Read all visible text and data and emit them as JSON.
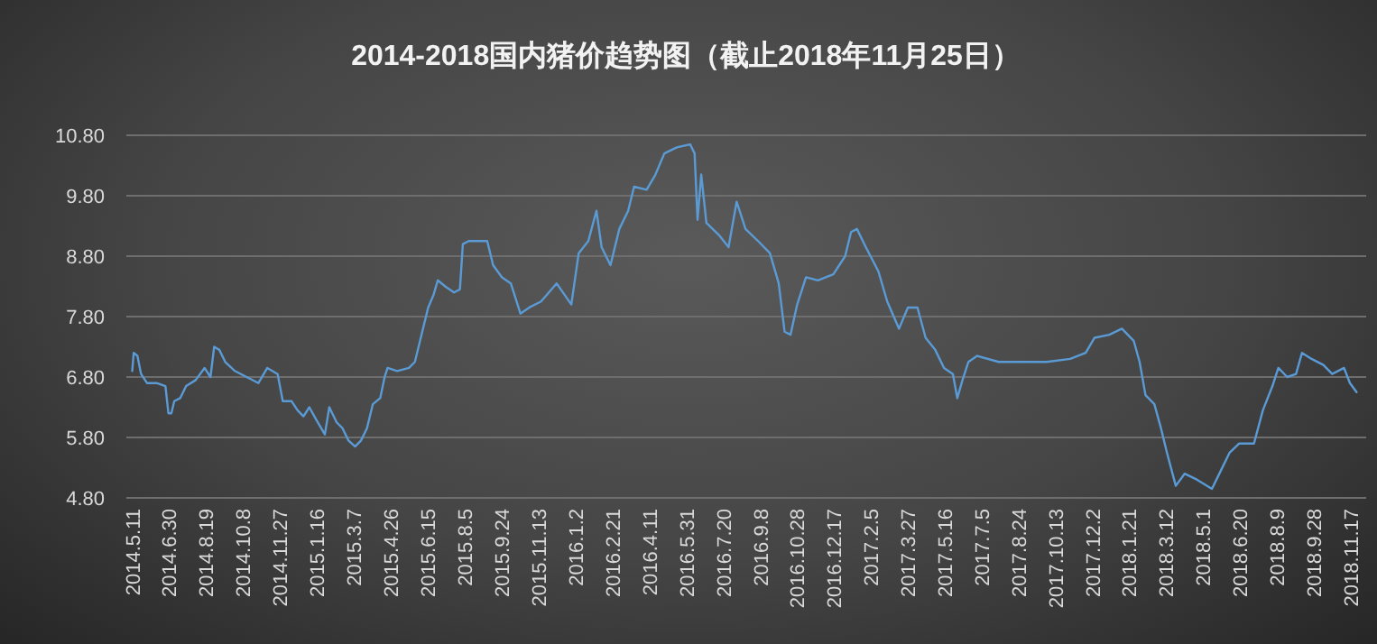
{
  "chart_data": {
    "type": "line",
    "title": "2014-2018国内猪价趋势图（截止2018年11月25日）",
    "x": [
      "2014-05-11",
      "2014-05-13",
      "2014-05-18",
      "2014-05-23",
      "2014-05-31",
      "2014-06-13",
      "2014-06-25",
      "2014-06-29",
      "2014-07-03",
      "2014-07-07",
      "2014-07-15",
      "2014-07-23",
      "2014-08-05",
      "2014-08-17",
      "2014-08-25",
      "2014-08-30",
      "2014-09-06",
      "2014-09-14",
      "2014-09-27",
      "2014-10-13",
      "2014-10-29",
      "2014-11-10",
      "2014-11-24",
      "2014-12-01",
      "2014-12-13",
      "2014-12-21",
      "2014-12-29",
      "2015-01-06",
      "2015-01-15",
      "2015-01-27",
      "2015-02-02",
      "2015-02-12",
      "2015-02-20",
      "2015-02-28",
      "2015-03-09",
      "2015-03-17",
      "2015-03-25",
      "2015-04-02",
      "2015-04-12",
      "2015-04-18",
      "2015-04-22",
      "2015-05-05",
      "2015-05-21",
      "2015-05-29",
      "2015-06-06",
      "2015-06-16",
      "2015-06-23",
      "2015-06-29",
      "2015-07-09",
      "2015-07-21",
      "2015-07-29",
      "2015-08-02",
      "2015-08-10",
      "2015-09-04",
      "2015-09-12",
      "2015-09-24",
      "2015-10-06",
      "2015-10-19",
      "2015-10-31",
      "2015-11-16",
      "2015-12-07",
      "2015-12-27",
      "2016-01-06",
      "2016-01-19",
      "2016-01-30",
      "2016-02-06",
      "2016-02-18",
      "2016-03-01",
      "2016-03-13",
      "2016-03-21",
      "2016-04-07",
      "2016-04-19",
      "2016-05-01",
      "2016-05-18",
      "2016-06-05",
      "2016-06-11",
      "2016-06-15",
      "2016-06-20",
      "2016-06-27",
      "2016-07-14",
      "2016-07-27",
      "2016-08-07",
      "2016-08-19",
      "2016-09-05",
      "2016-09-21",
      "2016-10-03",
      "2016-10-11",
      "2016-10-19",
      "2016-10-28",
      "2016-11-09",
      "2016-11-25",
      "2016-12-16",
      "2017-01-01",
      "2017-01-09",
      "2017-01-17",
      "2017-01-29",
      "2017-02-15",
      "2017-02-27",
      "2017-03-15",
      "2017-03-27",
      "2017-04-09",
      "2017-04-20",
      "2017-05-03",
      "2017-05-15",
      "2017-05-27",
      "2017-06-02",
      "2017-06-09",
      "2017-06-17",
      "2017-06-29",
      "2017-07-28",
      "2017-08-29",
      "2017-10-01",
      "2017-11-02",
      "2017-11-23",
      "2017-12-05",
      "2017-12-25",
      "2018-01-11",
      "2018-01-27",
      "2018-02-04",
      "2018-02-12",
      "2018-02-24",
      "2018-03-05",
      "2018-03-13",
      "2018-03-25",
      "2018-04-06",
      "2018-04-23",
      "2018-05-13",
      "2018-05-25",
      "2018-06-06",
      "2018-06-19",
      "2018-07-09",
      "2018-07-21",
      "2018-08-03",
      "2018-08-11",
      "2018-08-23",
      "2018-09-04",
      "2018-09-12",
      "2018-09-25",
      "2018-10-11",
      "2018-10-23",
      "2018-11-08",
      "2018-11-16",
      "2018-11-25"
    ],
    "series": [
      {
        "color": "#5b9bd5",
        "values": [
          6.9,
          7.2,
          7.15,
          6.85,
          6.7,
          6.7,
          6.65,
          6.2,
          6.2,
          6.4,
          6.45,
          6.65,
          6.75,
          6.95,
          6.8,
          7.3,
          7.25,
          7.05,
          6.9,
          6.8,
          6.7,
          6.95,
          6.85,
          6.4,
          6.4,
          6.25,
          6.15,
          6.3,
          6.1,
          5.85,
          6.3,
          6.05,
          5.95,
          5.75,
          5.65,
          5.75,
          5.95,
          6.35,
          6.45,
          6.8,
          6.95,
          6.9,
          6.95,
          7.05,
          7.45,
          7.95,
          8.15,
          8.4,
          8.3,
          8.2,
          8.25,
          9.0,
          9.05,
          9.05,
          8.65,
          8.45,
          8.35,
          7.85,
          7.95,
          8.05,
          8.35,
          8.0,
          8.85,
          9.05,
          9.55,
          8.95,
          8.65,
          9.25,
          9.55,
          9.95,
          9.9,
          10.15,
          10.5,
          10.6,
          10.65,
          10.5,
          9.4,
          10.15,
          9.35,
          9.15,
          8.95,
          9.7,
          9.25,
          9.05,
          8.85,
          8.35,
          7.55,
          7.5,
          8.0,
          8.45,
          8.4,
          8.5,
          8.8,
          9.2,
          9.25,
          8.95,
          8.55,
          8.05,
          7.6,
          7.95,
          7.95,
          7.45,
          7.25,
          6.95,
          6.85,
          6.45,
          6.75,
          7.05,
          7.15,
          7.05,
          7.05,
          7.05,
          7.1,
          7.2,
          7.45,
          7.5,
          7.6,
          7.4,
          7.05,
          6.5,
          6.35,
          5.95,
          5.55,
          5.0,
          5.2,
          5.1,
          4.95,
          5.25,
          5.55,
          5.7,
          5.7,
          6.25,
          6.65,
          6.95,
          6.8,
          6.85,
          7.2,
          7.1,
          7.0,
          6.85,
          6.95,
          6.7,
          6.55
        ]
      }
    ],
    "xlim": [
      "2014-05-03",
      "2018-12-08"
    ],
    "xticks": [
      {
        "value": "2014-05-11",
        "label": "2014.5.11"
      },
      {
        "value": "2014-06-30",
        "label": "2014.6.30"
      },
      {
        "value": "2014-08-19",
        "label": "2014.8.19"
      },
      {
        "value": "2014-10-08",
        "label": "2014.10.8"
      },
      {
        "value": "2014-11-27",
        "label": "2014.11.27"
      },
      {
        "value": "2015-01-16",
        "label": "2015.1.16"
      },
      {
        "value": "2015-03-07",
        "label": "2015.3.7"
      },
      {
        "value": "2015-04-26",
        "label": "2015.4.26"
      },
      {
        "value": "2015-06-15",
        "label": "2015.6.15"
      },
      {
        "value": "2015-08-05",
        "label": "2015.8.5"
      },
      {
        "value": "2015-09-24",
        "label": "2015.9.24"
      },
      {
        "value": "2015-11-13",
        "label": "2015.11.13"
      },
      {
        "value": "2016-01-02",
        "label": "2016.1.2"
      },
      {
        "value": "2016-02-21",
        "label": "2016.2.21"
      },
      {
        "value": "2016-04-11",
        "label": "2016.4.11"
      },
      {
        "value": "2016-05-31",
        "label": "2016.5.31"
      },
      {
        "value": "2016-07-20",
        "label": "2016.7.20"
      },
      {
        "value": "2016-09-08",
        "label": "2016.9.8"
      },
      {
        "value": "2016-10-28",
        "label": "2016.10.28"
      },
      {
        "value": "2016-12-17",
        "label": "2016.12.17"
      },
      {
        "value": "2017-02-05",
        "label": "2017.2.5"
      },
      {
        "value": "2017-03-27",
        "label": "2017.3.27"
      },
      {
        "value": "2017-05-16",
        "label": "2017.5.16"
      },
      {
        "value": "2017-07-05",
        "label": "2017.7.5"
      },
      {
        "value": "2017-08-24",
        "label": "2017.8.24"
      },
      {
        "value": "2017-10-13",
        "label": "2017.10.13"
      },
      {
        "value": "2017-12-02",
        "label": "2017.12.2"
      },
      {
        "value": "2018-01-21",
        "label": "2018.1.21"
      },
      {
        "value": "2018-03-12",
        "label": "2018.3.12"
      },
      {
        "value": "2018-05-01",
        "label": "2018.5.1"
      },
      {
        "value": "2018-06-20",
        "label": "2018.6.20"
      },
      {
        "value": "2018-08-09",
        "label": "2018.8.9"
      },
      {
        "value": "2018-09-28",
        "label": "2018.9.28"
      },
      {
        "value": "2018-11-17",
        "label": "2018.11.17"
      }
    ],
    "ylim": [
      4.8,
      10.8
    ],
    "yticks": [
      {
        "value": 4.8,
        "label": "4.80"
      },
      {
        "value": 5.8,
        "label": "5.80"
      },
      {
        "value": 6.8,
        "label": "6.80"
      },
      {
        "value": 7.8,
        "label": "7.80"
      },
      {
        "value": 8.8,
        "label": "8.80"
      },
      {
        "value": 9.8,
        "label": "9.80"
      },
      {
        "value": 10.8,
        "label": "10.80"
      }
    ],
    "grid": "y",
    "marker": "none",
    "line_style": "solid"
  }
}
